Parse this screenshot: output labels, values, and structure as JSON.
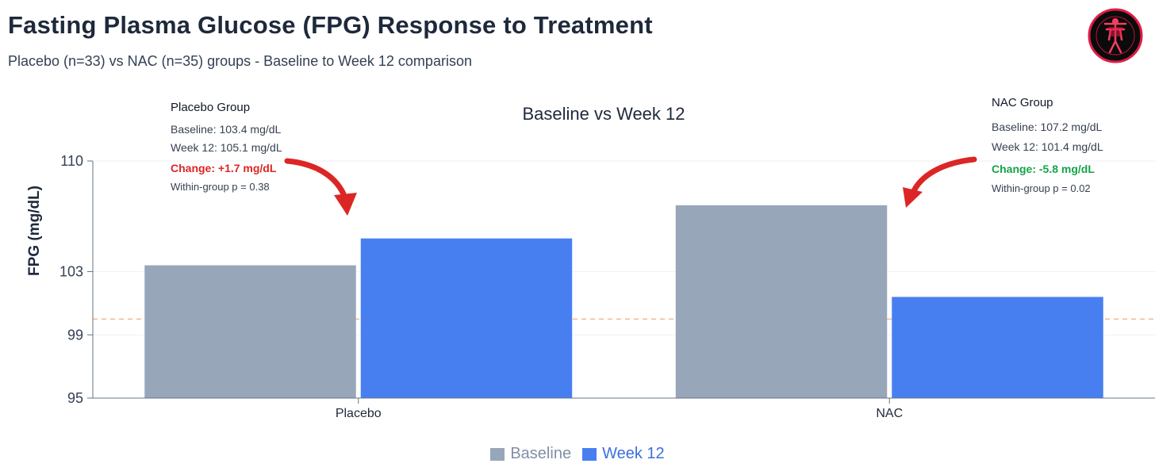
{
  "page": {
    "title": "Fasting Plasma Glucose (FPG) Response to Treatment",
    "subtitle": "Placebo (n=33) vs NAC (n=35) groups - Baseline to Week 12 comparison"
  },
  "colors": {
    "baseline": "#98a6ba",
    "week12": "#487ff0",
    "reference_line": "#f5b98a",
    "change_up": "#dc2626",
    "change_down": "#16a34a",
    "arrow": "#dc2626"
  },
  "icons": {
    "logo": "anatomy-figure-logo-icon"
  },
  "annotations": {
    "placebo": {
      "title": "Placebo Group",
      "baseline": "Baseline: 103.4 mg/dL",
      "week12": "Week 12: 105.1 mg/dL",
      "change": "Change: +1.7 mg/dL",
      "p_value": "Within-group p = 0.38"
    },
    "nac": {
      "title": "NAC Group",
      "baseline": "Baseline: 107.2 mg/dL",
      "week12": "Week 12: 101.4 mg/dL",
      "change": "Change: -5.8 mg/dL",
      "p_value": "Within-group p = 0.02"
    }
  },
  "chart_data": {
    "type": "bar",
    "title": "Baseline vs Week 12",
    "xlabel": "",
    "ylabel": "FPG (mg/dL)",
    "categories": [
      "Placebo",
      "NAC"
    ],
    "series": [
      {
        "name": "Baseline",
        "values": [
          103.4,
          107.2
        ]
      },
      {
        "name": "Week 12",
        "values": [
          105.1,
          101.4
        ]
      }
    ],
    "ylim": [
      95,
      110
    ],
    "yticks": [
      95,
      99,
      103,
      110
    ],
    "reference_line": {
      "value": 100,
      "style": "dashed"
    },
    "grid": true,
    "legend": "bottom-center"
  }
}
